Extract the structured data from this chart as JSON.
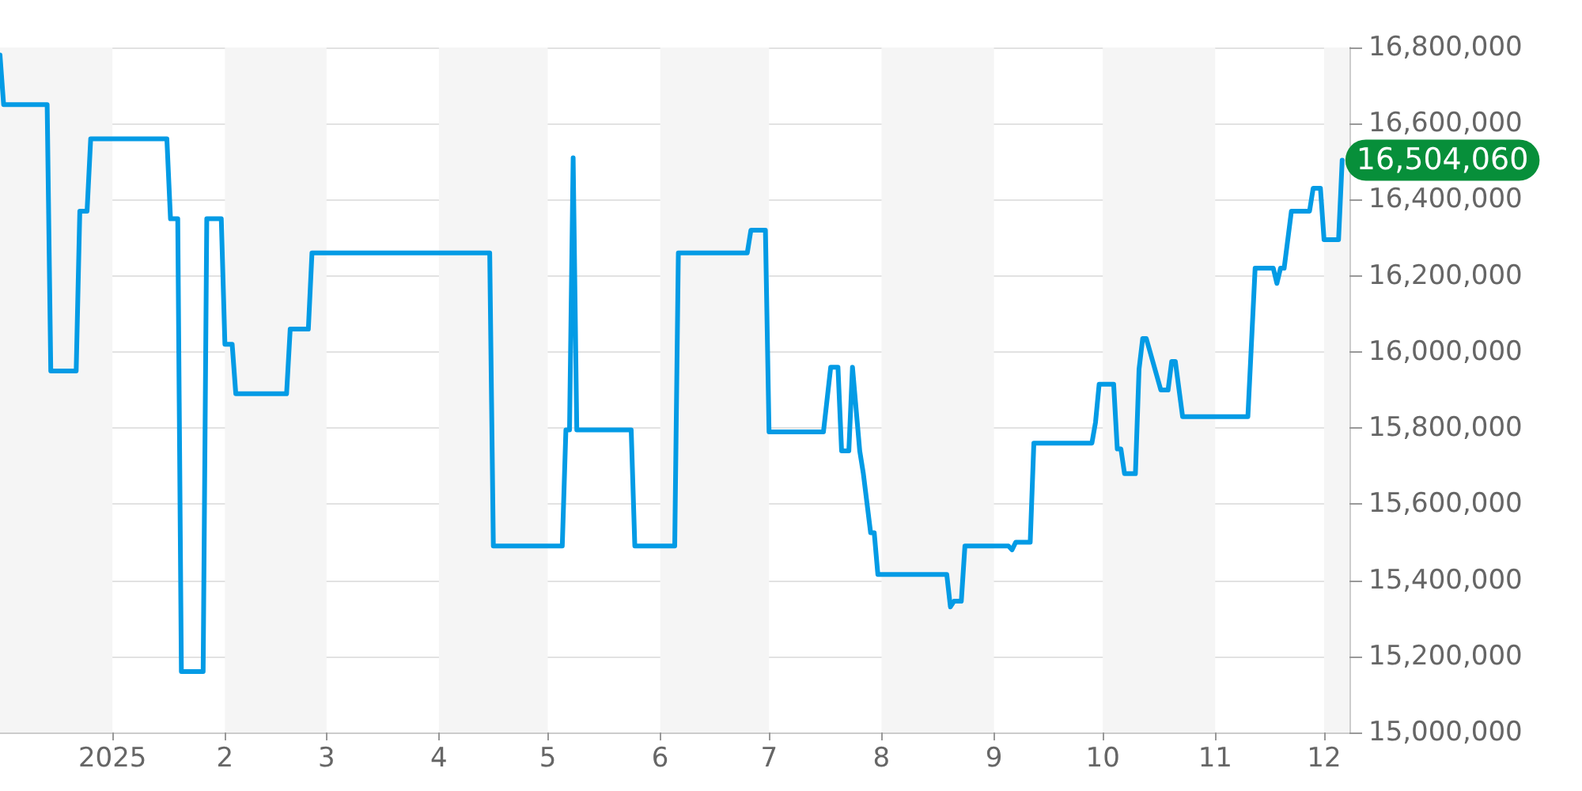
{
  "chart_data": {
    "type": "line",
    "annotations": [
      {
        "text": "16,504,060",
        "x": "2025-12-06",
        "y": 16504060
      }
    ],
    "xlim": [
      "2024-12-01",
      "2025-12-08"
    ],
    "xticks": [
      {
        "value": "2025-01",
        "label": "2025"
      },
      {
        "value": "2025-02",
        "label": "2"
      },
      {
        "value": "2025-03",
        "label": "3"
      },
      {
        "value": "2025-04",
        "label": "4"
      },
      {
        "value": "2025-05",
        "label": "5"
      },
      {
        "value": "2025-06",
        "label": "6"
      },
      {
        "value": "2025-07",
        "label": "7"
      },
      {
        "value": "2025-08",
        "label": "8"
      },
      {
        "value": "2025-09",
        "label": "9"
      },
      {
        "value": "2025-10",
        "label": "10"
      },
      {
        "value": "2025-11",
        "label": "11"
      },
      {
        "value": "2025-12",
        "label": "12"
      }
    ],
    "ylim": [
      15000000,
      16800000
    ],
    "yticks": [
      {
        "value": 15000000,
        "label": "15,000,000"
      },
      {
        "value": 15200000,
        "label": "15,200,000"
      },
      {
        "value": 15400000,
        "label": "15,400,000"
      },
      {
        "value": 15600000,
        "label": "15,600,000"
      },
      {
        "value": 15800000,
        "label": "15,800,000"
      },
      {
        "value": 16000000,
        "label": "16,000,000"
      },
      {
        "value": 16200000,
        "label": "16,200,000"
      },
      {
        "value": 16400000,
        "label": "16,400,000"
      },
      {
        "value": 16600000,
        "label": "16,600,000"
      },
      {
        "value": 16800000,
        "label": "16,800,000"
      }
    ],
    "grid": "y",
    "marker": "none",
    "line_style": "solid",
    "bands": [
      {
        "axis": "x",
        "from": "2024-12-01",
        "to": "2025-01-01",
        "color": "#f5f5f5"
      },
      {
        "axis": "x",
        "from": "2025-02-01",
        "to": "2025-03-01",
        "color": "#f5f5f5"
      },
      {
        "axis": "x",
        "from": "2025-04-01",
        "to": "2025-05-01",
        "color": "#f5f5f5"
      },
      {
        "axis": "x",
        "from": "2025-06-01",
        "to": "2025-07-01",
        "color": "#f5f5f5"
      },
      {
        "axis": "x",
        "from": "2025-08-01",
        "to": "2025-09-01",
        "color": "#f5f5f5"
      },
      {
        "axis": "x",
        "from": "2025-10-01",
        "to": "2025-11-01",
        "color": "#f5f5f5"
      },
      {
        "axis": "x",
        "from": "2025-12-01",
        "to": "2025-12-08",
        "color": "#f5f5f5"
      }
    ],
    "series": [
      {
        "color": "#039be5",
        "x": [
          "2024-12-01",
          "2024-12-02",
          "2024-12-14",
          "2024-12-15",
          "2024-12-22",
          "2024-12-23",
          "2024-12-25",
          "2024-12-26",
          "2025-01-16",
          "2025-01-17",
          "2025-01-19",
          "2025-01-20",
          "2025-01-26",
          "2025-01-27",
          "2025-01-31",
          "2025-02-01",
          "2025-02-03",
          "2025-02-04",
          "2025-02-18",
          "2025-02-19",
          "2025-02-24",
          "2025-02-25",
          "2025-04-15",
          "2025-04-16",
          "2025-05-05",
          "2025-05-06",
          "2025-05-07",
          "2025-05-08",
          "2025-05-09",
          "2025-05-24",
          "2025-05-25",
          "2025-06-05",
          "2025-06-06",
          "2025-06-25",
          "2025-06-26",
          "2025-06-30",
          "2025-07-01",
          "2025-07-16",
          "2025-07-18",
          "2025-07-20",
          "2025-07-21",
          "2025-07-23",
          "2025-07-24",
          "2025-07-26",
          "2025-07-27",
          "2025-07-29",
          "2025-07-30",
          "2025-07-31",
          "2025-08-19",
          "2025-08-20",
          "2025-08-21",
          "2025-08-23",
          "2025-08-24",
          "2025-09-05",
          "2025-09-06",
          "2025-09-07",
          "2025-09-11",
          "2025-09-12",
          "2025-09-28",
          "2025-09-29",
          "2025-09-30",
          "2025-10-04",
          "2025-10-05",
          "2025-10-06",
          "2025-10-07",
          "2025-10-10",
          "2025-10-11",
          "2025-10-12",
          "2025-10-13",
          "2025-10-17",
          "2025-10-19",
          "2025-10-20",
          "2025-10-21",
          "2025-10-23",
          "2025-11-10",
          "2025-11-12",
          "2025-11-17",
          "2025-11-18",
          "2025-11-19",
          "2025-11-20",
          "2025-11-22",
          "2025-11-27",
          "2025-11-28",
          "2025-11-30",
          "2025-12-01",
          "2025-12-05",
          "2025-12-06"
        ],
        "values": [
          16780000,
          16650000,
          16650000,
          15950000,
          15950000,
          16370000,
          16370000,
          16560000,
          16560000,
          16350000,
          16350000,
          15160000,
          15160000,
          16350000,
          16350000,
          16020000,
          16020000,
          15890000,
          15890000,
          16060000,
          16060000,
          16260000,
          16260000,
          15490000,
          15490000,
          15795000,
          15795000,
          16510000,
          15795000,
          15795000,
          15490000,
          15490000,
          16260000,
          16260000,
          16320000,
          16320000,
          15790000,
          15790000,
          15960000,
          15960000,
          15740000,
          15740000,
          15960000,
          15740000,
          15680000,
          15525000,
          15525000,
          15415000,
          15415000,
          15330000,
          15345000,
          15345000,
          15490000,
          15490000,
          15480000,
          15500000,
          15500000,
          15760000,
          15760000,
          15815000,
          15915000,
          15915000,
          15745000,
          15745000,
          15680000,
          15680000,
          15955000,
          16035000,
          16035000,
          15900000,
          15900000,
          15975000,
          15975000,
          15830000,
          15830000,
          16220000,
          16220000,
          16180000,
          16220000,
          16220000,
          16370000,
          16370000,
          16430000,
          16430000,
          16295000,
          16295000,
          16504060
        ]
      }
    ]
  }
}
